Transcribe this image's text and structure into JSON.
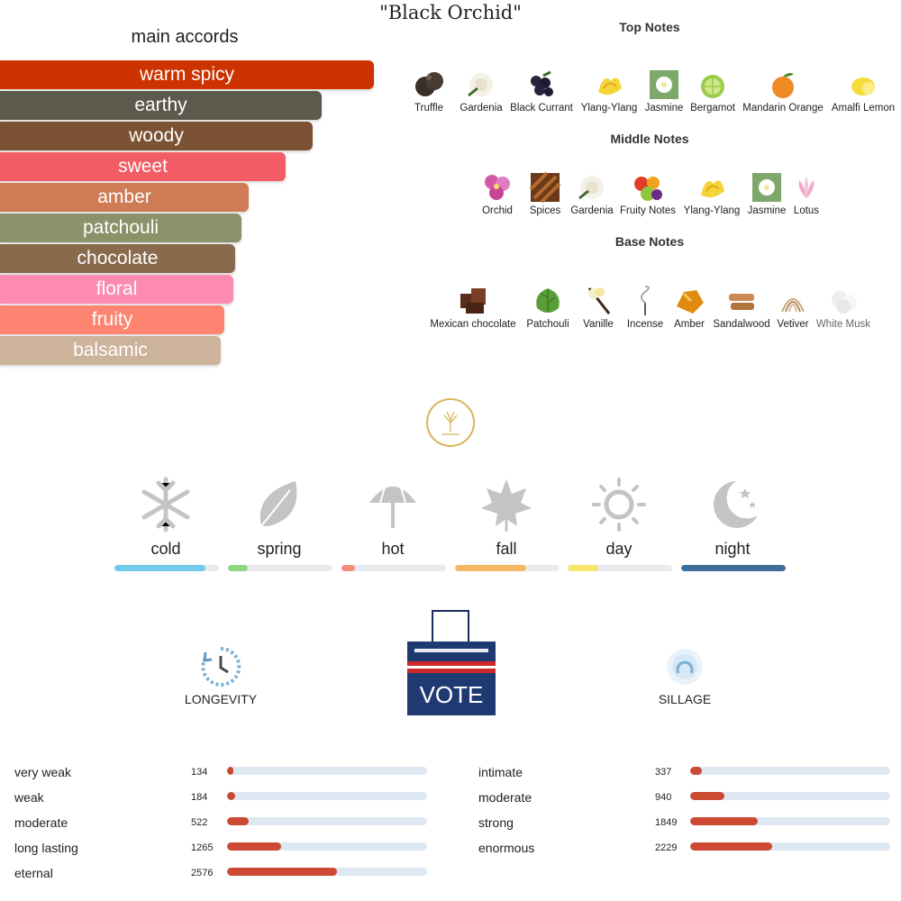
{
  "title": "\"Black Orchid\"",
  "accords": {
    "heading": "main accords",
    "items": [
      {
        "label": "warm spicy",
        "color": "#cc3300",
        "strength": 1.0
      },
      {
        "label": "earthy",
        "color": "#5c5a4c",
        "strength": 0.86
      },
      {
        "label": "woody",
        "color": "#7b5233",
        "strength": 0.835
      },
      {
        "label": "sweet",
        "color": "#f25c64",
        "strength": 0.765
      },
      {
        "label": "amber",
        "color": "#cf7b55",
        "strength": 0.665
      },
      {
        "label": "patchouli",
        "color": "#8b926a",
        "strength": 0.645
      },
      {
        "label": "chocolate",
        "color": "#8a6a4d",
        "strength": 0.63
      },
      {
        "label": "floral",
        "color": "#fd8bb0",
        "strength": 0.625
      },
      {
        "label": "fruity",
        "color": "#fd8470",
        "strength": 0.6
      },
      {
        "label": "balsamic",
        "color": "#ccb39a",
        "strength": 0.59
      }
    ]
  },
  "notes": {
    "top": {
      "heading": "Top Notes",
      "items": [
        {
          "label": "Truffle",
          "icon": "truffle-icon"
        },
        {
          "label": "Gardenia",
          "icon": "gardenia-icon"
        },
        {
          "label": "Black Currant",
          "icon": "black-currant-icon"
        },
        {
          "label": "Ylang-Ylang",
          "icon": "ylang-ylang-icon"
        },
        {
          "label": "Jasmine",
          "icon": "jasmine-icon"
        },
        {
          "label": "Bergamot",
          "icon": "bergamot-icon"
        },
        {
          "label": "Mandarin Orange",
          "icon": "mandarin-orange-icon"
        },
        {
          "label": "Amalfi Lemon",
          "icon": "lemon-icon"
        }
      ]
    },
    "middle": {
      "heading": "Middle Notes",
      "items": [
        {
          "label": "Orchid",
          "icon": "orchid-icon"
        },
        {
          "label": "Spices",
          "icon": "spices-icon"
        },
        {
          "label": "Gardenia",
          "icon": "gardenia-icon"
        },
        {
          "label": "Fruity Notes",
          "icon": "fruity-notes-icon"
        },
        {
          "label": "Ylang-Ylang",
          "icon": "ylang-ylang-icon"
        },
        {
          "label": "Jasmine",
          "icon": "jasmine-icon"
        },
        {
          "label": "Lotus",
          "icon": "lotus-icon"
        }
      ]
    },
    "base": {
      "heading": "Base Notes",
      "items": [
        {
          "label": "Mexican chocolate",
          "icon": "chocolate-icon"
        },
        {
          "label": "Patchouli",
          "icon": "patchouli-icon"
        },
        {
          "label": "Vanille",
          "icon": "vanilla-icon"
        },
        {
          "label": "Incense",
          "icon": "incense-icon"
        },
        {
          "label": "Amber",
          "icon": "amber-icon"
        },
        {
          "label": "Sandalwood",
          "icon": "sandalwood-icon"
        },
        {
          "label": "Vetiver",
          "icon": "vetiver-icon"
        },
        {
          "label": "White Musk",
          "icon": "white-musk-icon"
        }
      ]
    }
  },
  "seasons": [
    {
      "label": "cold",
      "icon": "snowflake-icon",
      "level": 0.87,
      "color": "#6fcbe8"
    },
    {
      "label": "spring",
      "icon": "leaf-icon",
      "level": 0.19,
      "color": "#8dd77e"
    },
    {
      "label": "hot",
      "icon": "umbrella-icon",
      "level": 0.13,
      "color": "#f28d7c"
    },
    {
      "label": "fall",
      "icon": "maple-leaf-icon",
      "level": 0.68,
      "color": "#f5b866"
    },
    {
      "label": "day",
      "icon": "sun-icon",
      "level": 0.29,
      "color": "#f7e66c"
    },
    {
      "label": "night",
      "icon": "moon-icon",
      "level": 1.0,
      "color": "#3e6f99"
    }
  ],
  "badges": {
    "vote_text": "VOTE",
    "longevity_label": "LONGEVITY",
    "sillage_label": "SILLAGE"
  },
  "longevity": [
    {
      "label": "very weak",
      "count": "134",
      "level": 0.03
    },
    {
      "label": "weak",
      "count": "184",
      "level": 0.04
    },
    {
      "label": "moderate",
      "count": "522",
      "level": 0.11
    },
    {
      "label": "long lasting",
      "count": "1265",
      "level": 0.27
    },
    {
      "label": "eternal",
      "count": "2576",
      "level": 0.55
    }
  ],
  "sillage": [
    {
      "label": "intimate",
      "count": "337",
      "level": 0.06
    },
    {
      "label": "moderate",
      "count": "940",
      "level": 0.17
    },
    {
      "label": "strong",
      "count": "1849",
      "level": 0.34
    },
    {
      "label": "enormous",
      "count": "2229",
      "level": 0.41
    }
  ]
}
